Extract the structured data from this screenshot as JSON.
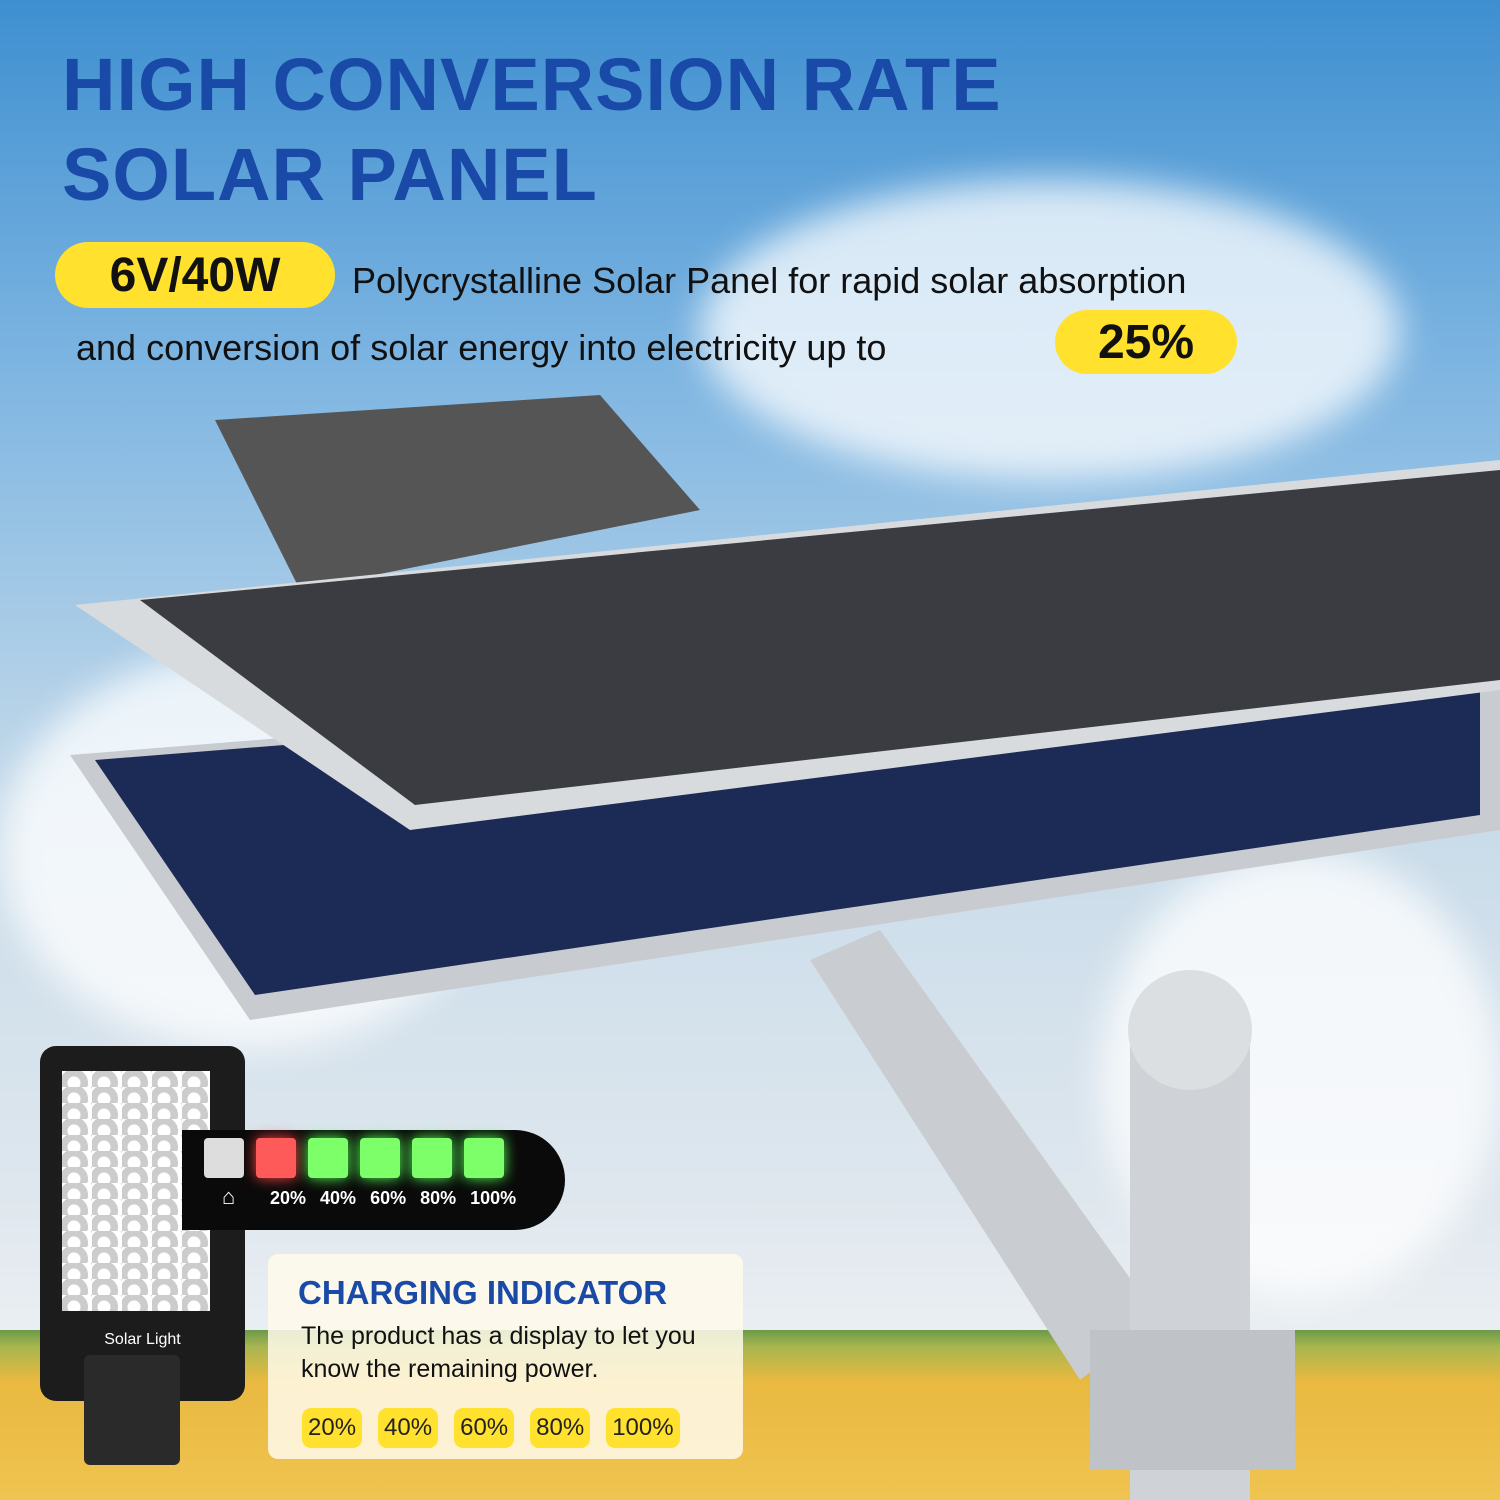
{
  "headline": {
    "line1": "HIGH CONVERSION RATE",
    "line2": "SOLAR PANEL"
  },
  "spec": {
    "badge": "6V/40W",
    "line1": "Polycrystalline Solar Panel for rapid solar absorption",
    "line2": "and conversion of solar energy into electricity up to",
    "rate_badge": "25%"
  },
  "indicator_display": {
    "levels": [
      "20%",
      "40%",
      "60%",
      "80%",
      "100%"
    ]
  },
  "lamp": {
    "label": "Solar Light"
  },
  "card": {
    "title": "CHARGING INDICATOR",
    "text": "The product has a display to let you know the remaining power.",
    "levels": [
      "20%",
      "40%",
      "60%",
      "80%",
      "100%"
    ]
  },
  "colors": {
    "headline": "#1a4aa7",
    "highlight": "#ffe12e",
    "led_red": "#ff5a5a",
    "led_green": "#7dff6a"
  }
}
